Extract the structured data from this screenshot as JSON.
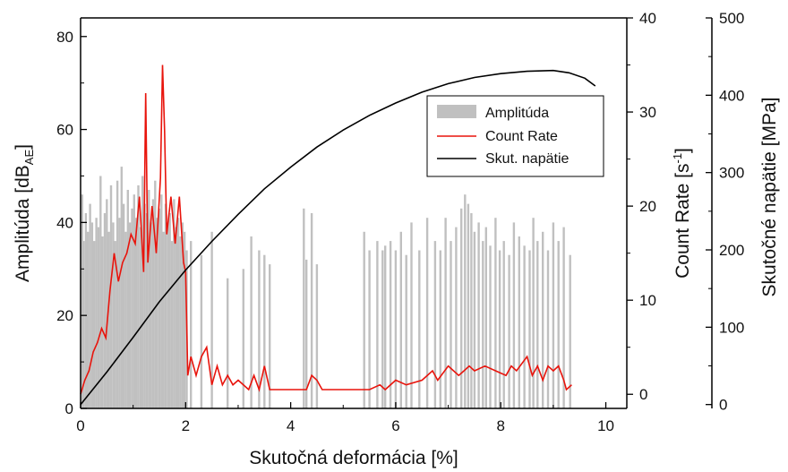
{
  "chart_data": {
    "type": "line",
    "title": "",
    "xlabel": "Skutočná deformácia [%]",
    "xlim": [
      0,
      10.4
    ],
    "xticks": [
      "0",
      "2",
      "4",
      "6",
      "8",
      "10"
    ],
    "axes": {
      "amplitude": {
        "label": "Amplitúda [dB",
        "label_sub": "AE",
        "label_close": "]",
        "ylim": [
          0,
          84
        ],
        "ticks": [
          "0",
          "20",
          "40",
          "60",
          "80"
        ]
      },
      "count_rate": {
        "label": "Count Rate [s",
        "label_sup": "-1",
        "label_close": "]",
        "ylim": [
          -1.5,
          40
        ],
        "ticks": [
          "0",
          "10",
          "20",
          "30",
          "40"
        ]
      },
      "stress": {
        "label": "Skutočné napätie [MPa]",
        "ylim": [
          -5,
          500
        ],
        "ticks": [
          "0",
          "100",
          "200",
          "300",
          "400",
          "500"
        ]
      }
    },
    "legend": {
      "position": "top-right",
      "items": [
        "Amplitúda",
        "Count Rate",
        "Skut. napätie"
      ]
    },
    "colors": {
      "amplitude": "#c0c0c0",
      "count_rate": "#e8140c",
      "stress": "#000000"
    },
    "series": [
      {
        "name": "Skut. napätie",
        "axis": "stress",
        "x": [
          0,
          0.5,
          1,
          1.5,
          2,
          2.5,
          3,
          3.5,
          4,
          4.5,
          5,
          5.5,
          6,
          6.5,
          7,
          7.5,
          8,
          8.5,
          9,
          9.3,
          9.6,
          9.8
        ],
        "y": [
          0,
          42,
          87,
          133,
          174,
          211,
          246,
          279,
          307,
          333,
          355,
          374,
          390,
          404,
          415,
          423,
          428,
          431,
          432,
          429,
          422,
          412
        ]
      },
      {
        "name": "Count Rate",
        "axis": "count_rate",
        "x": [
          0,
          0.08,
          0.16,
          0.24,
          0.32,
          0.4,
          0.48,
          0.56,
          0.64,
          0.72,
          0.8,
          0.88,
          0.96,
          1.04,
          1.12,
          1.2,
          1.24,
          1.28,
          1.36,
          1.44,
          1.52,
          1.56,
          1.6,
          1.64,
          1.72,
          1.8,
          1.88,
          1.96,
          2.0,
          2.04,
          2.1,
          2.2,
          2.3,
          2.4,
          2.5,
          2.6,
          2.7,
          2.8,
          2.9,
          3.0,
          3.2,
          3.3,
          3.4,
          3.5,
          3.6,
          4.0,
          4.3,
          4.4,
          4.5,
          4.6,
          5.0,
          5.5,
          5.7,
          5.8,
          6.0,
          6.2,
          6.5,
          6.7,
          6.8,
          7.0,
          7.2,
          7.3,
          7.4,
          7.5,
          7.7,
          7.9,
          8.1,
          8.2,
          8.3,
          8.5,
          8.6,
          8.7,
          8.8,
          8.9,
          9.0,
          9.1,
          9.2,
          9.25,
          9.35
        ],
        "y": [
          0,
          1.5,
          2.5,
          4.5,
          5.5,
          7,
          6,
          11,
          15,
          12,
          14,
          15,
          17,
          16,
          21,
          13,
          32,
          14,
          20,
          15,
          23,
          35,
          28,
          17,
          21,
          16,
          21,
          14,
          13,
          2,
          4,
          2,
          4,
          5,
          1,
          3,
          1,
          2,
          1,
          1.5,
          0.5,
          2,
          0.5,
          3,
          0.5,
          0.5,
          0.5,
          2,
          1.5,
          0.5,
          0.5,
          0.5,
          1,
          0.5,
          1.5,
          1,
          1.5,
          2.5,
          1.5,
          3,
          2,
          2.5,
          3,
          2.5,
          3,
          2.5,
          2,
          3,
          2.5,
          4,
          2,
          3,
          1.5,
          3,
          2.5,
          3,
          1.5,
          0.5,
          1
        ]
      }
    ],
    "amplitude_bars": {
      "x": [
        0.03,
        0.06,
        0.1,
        0.14,
        0.18,
        0.22,
        0.26,
        0.3,
        0.34,
        0.38,
        0.42,
        0.46,
        0.5,
        0.54,
        0.58,
        0.62,
        0.66,
        0.7,
        0.74,
        0.78,
        0.82,
        0.86,
        0.9,
        0.94,
        0.98,
        1.02,
        1.06,
        1.1,
        1.14,
        1.18,
        1.22,
        1.26,
        1.3,
        1.34,
        1.38,
        1.42,
        1.46,
        1.5,
        1.54,
        1.58,
        1.62,
        1.66,
        1.7,
        1.74,
        1.78,
        1.82,
        1.86,
        1.9,
        1.94,
        1.98,
        2.02,
        2.1,
        2.3,
        2.5,
        2.8,
        3.1,
        3.25,
        3.4,
        3.5,
        3.6,
        4.25,
        4.3,
        4.4,
        4.5,
        5.4,
        5.5,
        5.65,
        5.75,
        5.8,
        5.9,
        6.0,
        6.1,
        6.2,
        6.3,
        6.45,
        6.6,
        6.75,
        6.85,
        6.95,
        7.05,
        7.15,
        7.25,
        7.32,
        7.38,
        7.44,
        7.5,
        7.58,
        7.66,
        7.72,
        7.8,
        7.9,
        7.98,
        8.06,
        8.16,
        8.25,
        8.35,
        8.45,
        8.55,
        8.62,
        8.7,
        8.8,
        8.9,
        9.0,
        9.1,
        9.2,
        9.32
      ],
      "values": [
        46,
        36,
        42,
        38,
        44,
        40,
        36,
        41,
        39,
        50,
        37,
        42,
        45,
        38,
        48,
        40,
        36,
        49,
        41,
        52,
        44,
        38,
        47,
        40,
        43,
        46,
        41,
        48,
        39,
        50,
        44,
        42,
        47,
        40,
        45,
        49,
        41,
        43,
        46,
        38,
        44,
        40,
        42,
        36,
        45,
        39,
        41,
        37,
        40,
        38,
        34,
        36,
        33,
        38,
        28,
        30,
        37,
        34,
        33,
        31,
        43,
        32,
        42,
        31,
        38,
        34,
        36,
        34,
        35,
        36,
        34,
        38,
        33,
        40,
        34,
        41,
        36,
        34,
        41,
        36,
        39,
        43,
        46,
        44,
        42,
        38,
        40,
        36,
        39,
        35,
        41,
        34,
        36,
        33,
        40,
        37,
        35,
        34,
        41,
        36,
        38,
        34,
        40,
        36,
        39,
        33
      ]
    }
  }
}
